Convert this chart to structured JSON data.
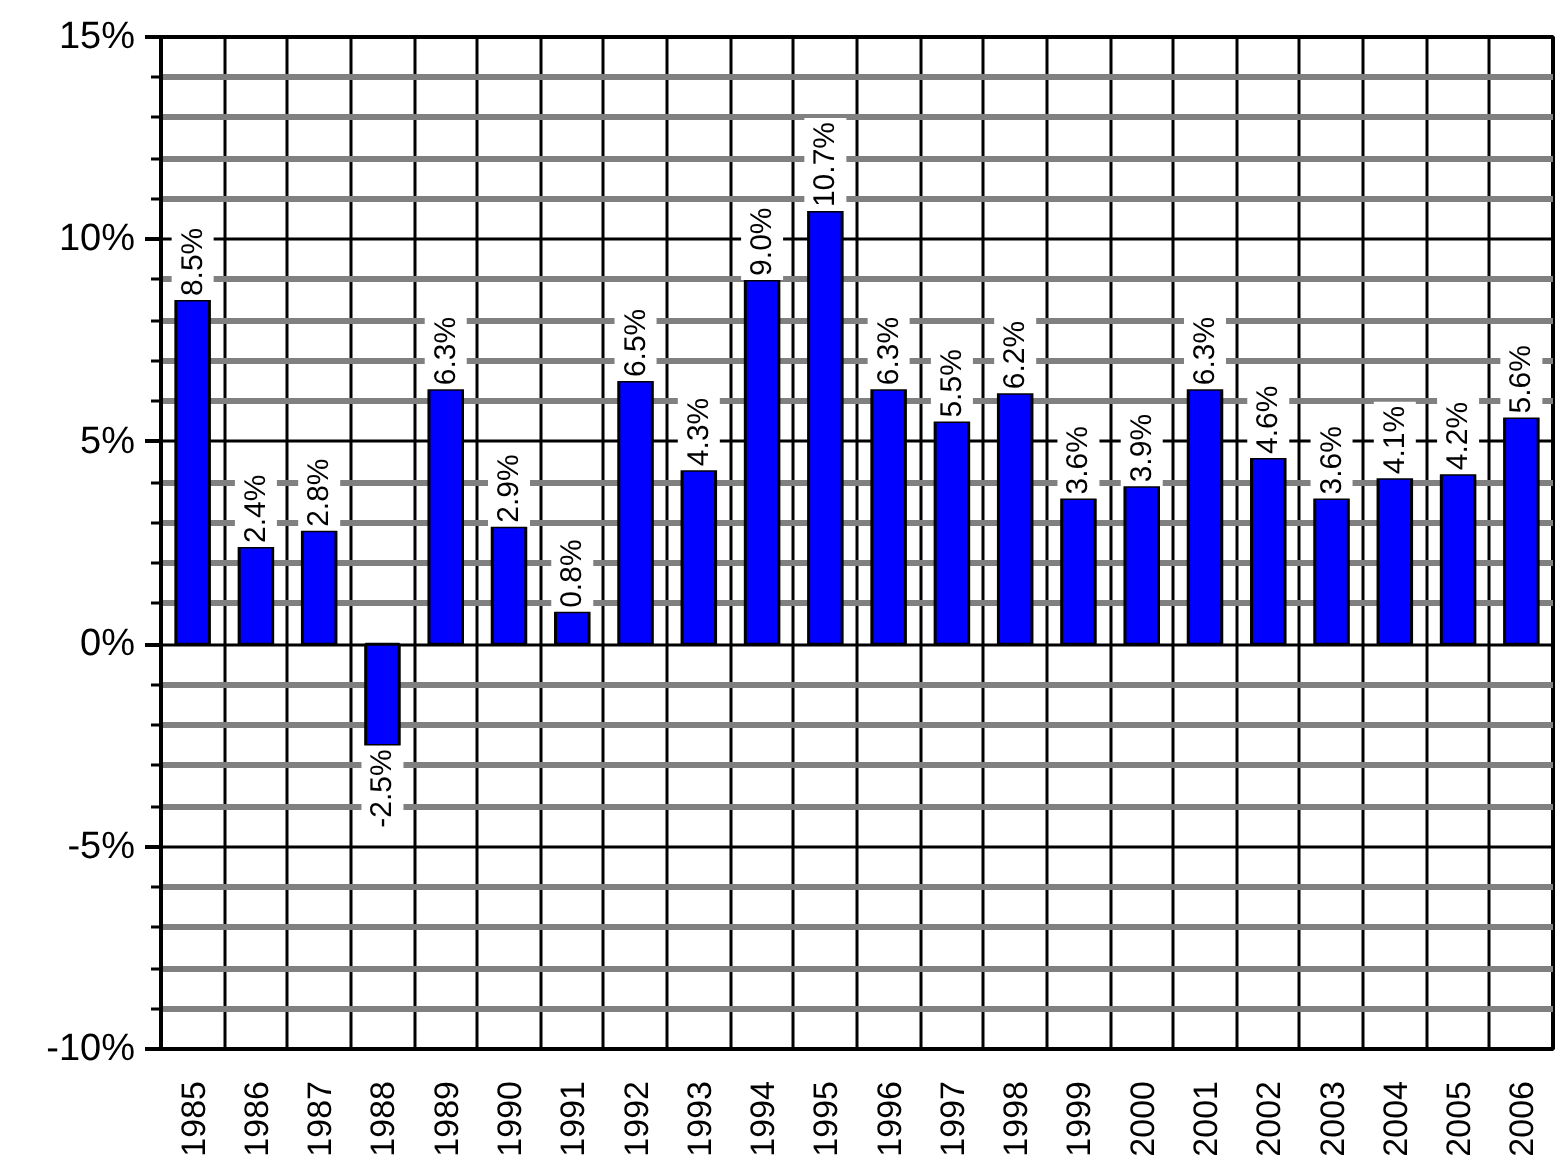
{
  "chart_data": {
    "type": "bar",
    "categories": [
      "1985",
      "1986",
      "1987",
      "1988",
      "1989",
      "1990",
      "1991",
      "1992",
      "1993",
      "1994",
      "1995",
      "1996",
      "1997",
      "1998",
      "1999",
      "2000",
      "2001",
      "2002",
      "2003",
      "2004",
      "2005",
      "2006"
    ],
    "values": [
      8.5,
      2.4,
      2.8,
      -2.5,
      6.3,
      2.9,
      0.8,
      6.5,
      4.3,
      9.0,
      10.7,
      6.3,
      5.5,
      6.2,
      3.6,
      3.9,
      6.3,
      4.6,
      3.6,
      4.1,
      4.2,
      5.6
    ],
    "value_labels": [
      "8.5%",
      "2.4%",
      "2.8%",
      "-2.5%",
      "6.3%",
      "2.9%",
      "0.8%",
      "6.5%",
      "4.3%",
      "9.0%",
      "10.7%",
      "6.3%",
      "5.5%",
      "6.2%",
      "3.6%",
      "3.9%",
      "6.3%",
      "4.6%",
      "3.6%",
      "4.1%",
      "4.2%",
      "5.6%"
    ],
    "color": "#0000ff",
    "ylim": [
      -10,
      15
    ],
    "yticks": [
      {
        "value": -10,
        "label": "-10%"
      },
      {
        "value": -9,
        "label": null
      },
      {
        "value": -8,
        "label": null
      },
      {
        "value": -7,
        "label": null
      },
      {
        "value": -6,
        "label": null
      },
      {
        "value": -5,
        "label": "-5%"
      },
      {
        "value": -4,
        "label": null
      },
      {
        "value": -3,
        "label": null
      },
      {
        "value": -2,
        "label": null
      },
      {
        "value": -1,
        "label": null
      },
      {
        "value": 0,
        "label": "0%"
      },
      {
        "value": 1,
        "label": null
      },
      {
        "value": 2,
        "label": null
      },
      {
        "value": 3,
        "label": null
      },
      {
        "value": 4,
        "label": null
      },
      {
        "value": 5,
        "label": "5%"
      },
      {
        "value": 6,
        "label": null
      },
      {
        "value": 7,
        "label": null
      },
      {
        "value": 8,
        "label": null
      },
      {
        "value": 9,
        "label": null
      },
      {
        "value": 10,
        "label": "10%"
      },
      {
        "value": 11,
        "label": null
      },
      {
        "value": 12,
        "label": null
      },
      {
        "value": 13,
        "label": null
      },
      {
        "value": 14,
        "label": null
      },
      {
        "value": 15,
        "label": "15%"
      }
    ],
    "grid": true
  }
}
